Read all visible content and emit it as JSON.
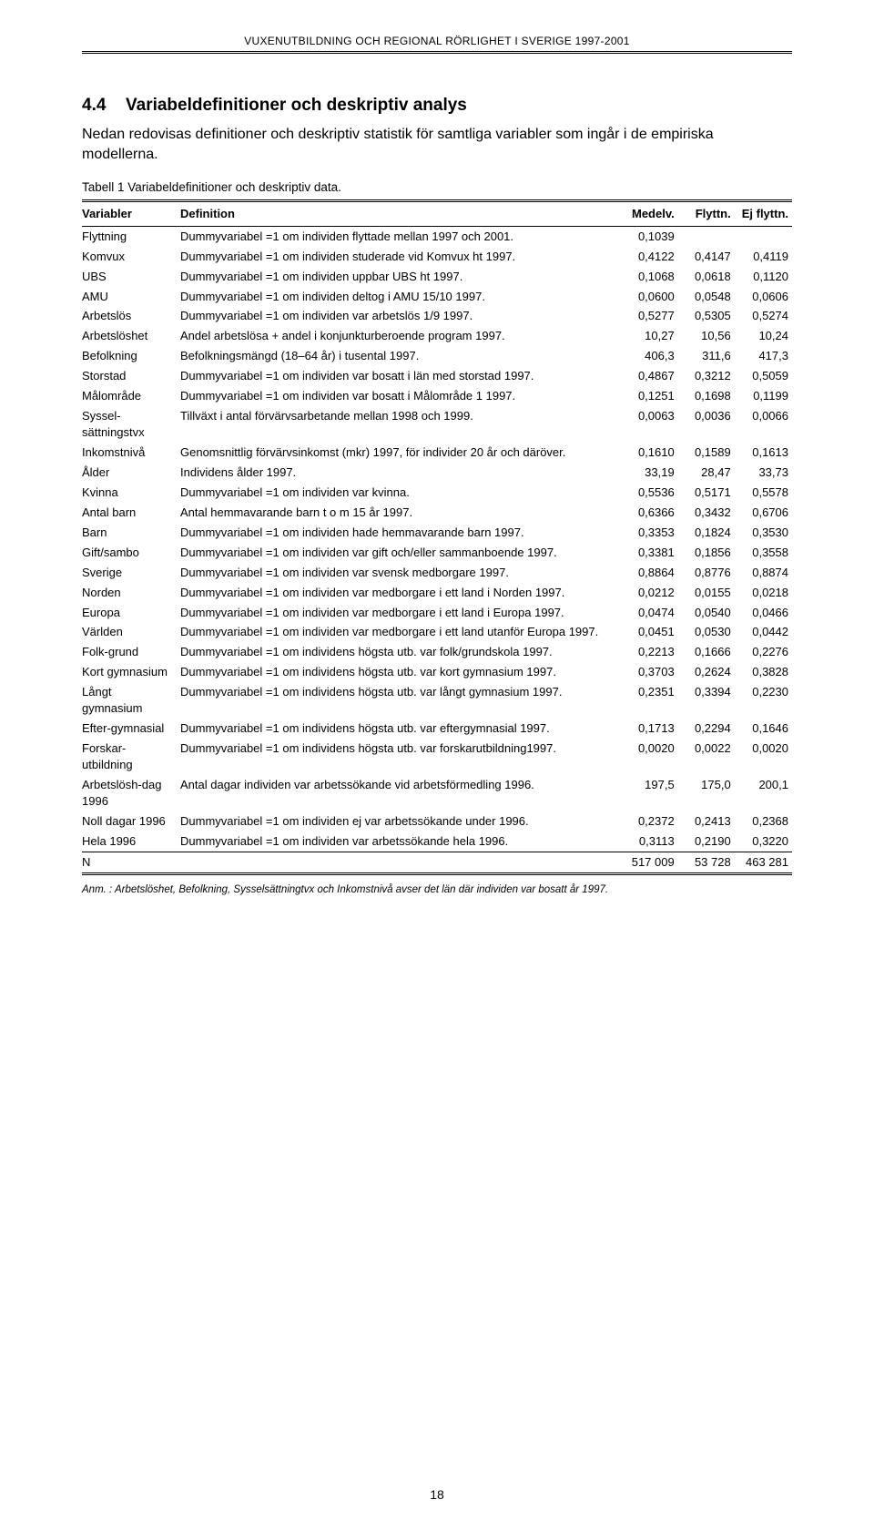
{
  "running_head": "VUXENUTBILDNING OCH REGIONAL RÖRLIGHET I SVERIGE 1997-2001",
  "section": {
    "number": "4.4",
    "title": "Variabeldefinitioner och deskriptiv analys",
    "intro": "Nedan redovisas definitioner och deskriptiv statistik för samtliga variabler som ingår i de empiriska modellerna."
  },
  "table": {
    "caption": "Tabell 1 Variabeldefinitioner och deskriptiv data.",
    "columns": {
      "var": "Variabler",
      "def": "Definition",
      "c1": "Medelv.",
      "c2": "Flyttn.",
      "c3": "Ej flyttn."
    },
    "rows": [
      {
        "var": "Flyttning",
        "def": "Dummyvariabel =1 om individen flyttade mellan 1997 och 2001.",
        "c1": "0,1039",
        "c2": "",
        "c3": ""
      },
      {
        "var": "Komvux",
        "def": "Dummyvariabel =1 om individen studerade vid Komvux ht 1997.",
        "c1": "0,4122",
        "c2": "0,4147",
        "c3": "0,4119"
      },
      {
        "var": "UBS",
        "def": "Dummyvariabel =1 om individen uppbar UBS ht 1997.",
        "c1": "0,1068",
        "c2": "0,0618",
        "c3": "0,1120"
      },
      {
        "var": "AMU",
        "def": "Dummyvariabel =1 om individen deltog i AMU 15/10 1997.",
        "c1": "0,0600",
        "c2": "0,0548",
        "c3": "0,0606"
      },
      {
        "var": "Arbetslös",
        "def": "Dummyvariabel =1 om individen var arbetslös 1/9 1997.",
        "c1": "0,5277",
        "c2": "0,5305",
        "c3": "0,5274"
      },
      {
        "var": "Arbetslöshet",
        "def": "Andel arbetslösa + andel i konjunkturberoende program 1997.",
        "c1": "10,27",
        "c2": "10,56",
        "c3": "10,24"
      },
      {
        "var": "Befolkning",
        "def": "Befolkningsmängd (18–64 år) i tusental 1997.",
        "c1": "406,3",
        "c2": "311,6",
        "c3": "417,3"
      },
      {
        "var": "Storstad",
        "def": "Dummyvariabel =1 om individen var bosatt i län med storstad 1997.",
        "c1": "0,4867",
        "c2": "0,3212",
        "c3": "0,5059"
      },
      {
        "var": "Målområde",
        "def": "Dummyvariabel =1 om individen var bosatt i Målområde 1 1997.",
        "c1": "0,1251",
        "c2": "0,1698",
        "c3": "0,1199"
      },
      {
        "var": "Syssel-sättningstvx",
        "def": "Tillväxt i antal förvärvsarbetande mellan 1998 och 1999.",
        "c1": "0,0063",
        "c2": "0,0036",
        "c3": "0,0066"
      },
      {
        "var": "Inkomstnivå",
        "def": "Genomsnittlig förvärvsinkomst (mkr) 1997, för individer 20 år och däröver.",
        "c1": "0,1610",
        "c2": "0,1589",
        "c3": "0,1613"
      },
      {
        "var": "Ålder",
        "def": "Individens ålder 1997.",
        "c1": "33,19",
        "c2": "28,47",
        "c3": "33,73"
      },
      {
        "var": "Kvinna",
        "def": "Dummyvariabel =1 om individen var kvinna.",
        "c1": "0,5536",
        "c2": "0,5171",
        "c3": "0,5578"
      },
      {
        "var": "Antal barn",
        "def": "Antal hemmavarande barn t o m 15 år 1997.",
        "c1": "0,6366",
        "c2": "0,3432",
        "c3": "0,6706"
      },
      {
        "var": "Barn",
        "def": "Dummyvariabel =1 om individen hade hemmavarande barn 1997.",
        "c1": "0,3353",
        "c2": "0,1824",
        "c3": "0,3530"
      },
      {
        "var": "Gift/sambo",
        "def": "Dummyvariabel =1 om individen var gift och/eller sammanboende 1997.",
        "c1": "0,3381",
        "c2": "0,1856",
        "c3": "0,3558"
      },
      {
        "var": "Sverige",
        "def": "Dummyvariabel =1 om individen var svensk medborgare 1997.",
        "c1": "0,8864",
        "c2": "0,8776",
        "c3": "0,8874"
      },
      {
        "var": "Norden",
        "def": "Dummyvariabel =1 om individen var medborgare i ett land i Norden 1997.",
        "c1": "0,0212",
        "c2": "0,0155",
        "c3": "0,0218"
      },
      {
        "var": "Europa",
        "def": "Dummyvariabel =1 om individen var medborgare i ett land i Europa 1997.",
        "c1": "0,0474",
        "c2": "0,0540",
        "c3": "0,0466"
      },
      {
        "var": "Världen",
        "def": "Dummyvariabel =1 om individen var medborgare i ett land utanför Europa 1997.",
        "c1": "0,0451",
        "c2": "0,0530",
        "c3": "0,0442"
      },
      {
        "var": "Folk-grund",
        "def": "Dummyvariabel =1 om individens högsta utb. var folk/grundskola 1997.",
        "c1": "0,2213",
        "c2": "0,1666",
        "c3": "0,2276"
      },
      {
        "var": "Kort gymnasium",
        "def": "Dummyvariabel =1 om individens högsta utb. var kort gymnasium 1997.",
        "c1": "0,3703",
        "c2": "0,2624",
        "c3": "0,3828"
      },
      {
        "var": "Långt gymnasium",
        "def": "Dummyvariabel =1 om individens högsta utb. var långt gymnasium 1997.",
        "c1": "0,2351",
        "c2": "0,3394",
        "c3": "0,2230"
      },
      {
        "var": "Efter-gymnasial",
        "def": "Dummyvariabel =1 om individens högsta utb. var eftergymnasial 1997.",
        "c1": "0,1713",
        "c2": "0,2294",
        "c3": "0,1646"
      },
      {
        "var": "Forskar-utbildning",
        "def": "Dummyvariabel =1 om individens högsta utb. var forskarutbildning1997.",
        "c1": "0,0020",
        "c2": "0,0022",
        "c3": "0,0020"
      },
      {
        "var": "Arbetslösh-dag 1996",
        "def": "Antal dagar individen var arbetssökande vid arbetsförmedling 1996.",
        "c1": "197,5",
        "c2": "175,0",
        "c3": "200,1"
      },
      {
        "var": "Noll dagar 1996",
        "def": "Dummyvariabel =1 om individen ej var arbetssökande under 1996.",
        "c1": "0,2372",
        "c2": "0,2413",
        "c3": "0,2368"
      },
      {
        "var": "Hela 1996",
        "def": "Dummyvariabel =1 om individen var arbetssökande hela 1996.",
        "c1": "0,3113",
        "c2": "0,2190",
        "c3": "0,3220"
      }
    ],
    "lastrow": {
      "var": "N",
      "def": "",
      "c1": "517 009",
      "c2": "53 728",
      "c3": "463 281"
    },
    "note": "Anm. : Arbetslöshet, Befolkning, Sysselsättningtvx och Inkomstnivå avser det län där individen var bosatt år 1997."
  },
  "page_number": "18"
}
